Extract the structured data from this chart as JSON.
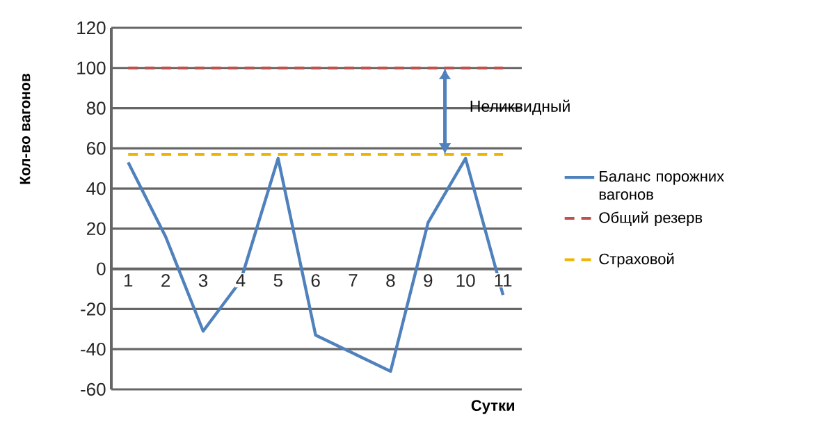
{
  "chart_data": {
    "type": "line",
    "xlabel": "Сутки",
    "ylabel": "Кол-во вагонов",
    "categories": [
      "1",
      "2",
      "3",
      "4",
      "5",
      "6",
      "7",
      "8",
      "9",
      "10",
      "11"
    ],
    "series": [
      {
        "name": "Баланс порожних вагонов",
        "color": "#4f81bd",
        "line_style": "solid",
        "values": [
          53,
          16,
          -31,
          -6,
          55,
          -33,
          -42,
          -51,
          23,
          55,
          -13
        ]
      },
      {
        "name": "Общий резерв",
        "color": "#c0504d",
        "line_style": "dashed",
        "values": [
          100,
          100,
          100,
          100,
          100,
          100,
          100,
          100,
          100,
          100,
          100
        ]
      },
      {
        "name": "Страховой",
        "color": "#f0b400",
        "line_style": "dashed",
        "values": [
          57,
          57,
          57,
          57,
          57,
          57,
          57,
          57,
          57,
          57,
          57
        ]
      }
    ],
    "ylim": [
      -60,
      120
    ],
    "yticks": [
      -60,
      -40,
      -20,
      0,
      20,
      40,
      60,
      80,
      100,
      120
    ],
    "annotations": [
      "Неликвидный"
    ],
    "grid": "y",
    "legend": "right",
    "marker": "none"
  }
}
